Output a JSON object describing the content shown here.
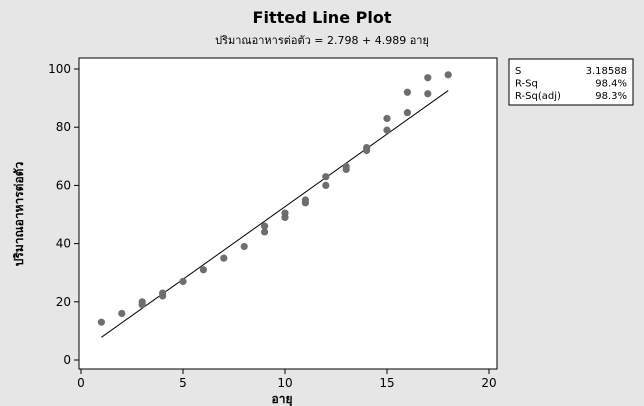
{
  "chart_data": {
    "type": "scatter",
    "title": "Fitted Line Plot",
    "subtitle": "ปริมาณอาหารต่อตัว = 2.798 + 4.989 อายุ",
    "xlabel": "อายุ",
    "ylabel": "ปริมาณอาหารต่อตัว",
    "xlim": [
      0,
      20
    ],
    "ylim": [
      0,
      100
    ],
    "xticks": [
      0,
      5,
      10,
      15,
      20
    ],
    "yticks": [
      0,
      20,
      40,
      60,
      80,
      100
    ],
    "grid": false,
    "fit": {
      "intercept": 2.798,
      "slope": 4.989,
      "x_range": [
        1,
        18
      ]
    },
    "series": [
      {
        "x": [
          1,
          2,
          3,
          3,
          4,
          4,
          5,
          6,
          7,
          8,
          9,
          9,
          10,
          10,
          11,
          11,
          12,
          12,
          13,
          13,
          14,
          14,
          15,
          15,
          16,
          16,
          17,
          17,
          18
        ],
        "y": [
          13,
          16,
          19,
          20,
          22,
          23,
          27,
          31,
          35,
          39,
          44,
          46,
          49,
          50.5,
          54,
          55,
          60,
          63,
          65.5,
          66.5,
          72,
          73,
          79,
          83,
          85,
          92,
          91.5,
          97,
          98
        ]
      }
    ],
    "stats": [
      {
        "label": "S",
        "value": "3.18588"
      },
      {
        "label": "R-Sq",
        "value": "98.4%"
      },
      {
        "label": "R-Sq(adj)",
        "value": "98.3%"
      }
    ],
    "colors": {
      "background": "#e6e6e6",
      "plot_area": "#ffffff",
      "marker": "#6e6e6e",
      "line": "#000000"
    }
  }
}
